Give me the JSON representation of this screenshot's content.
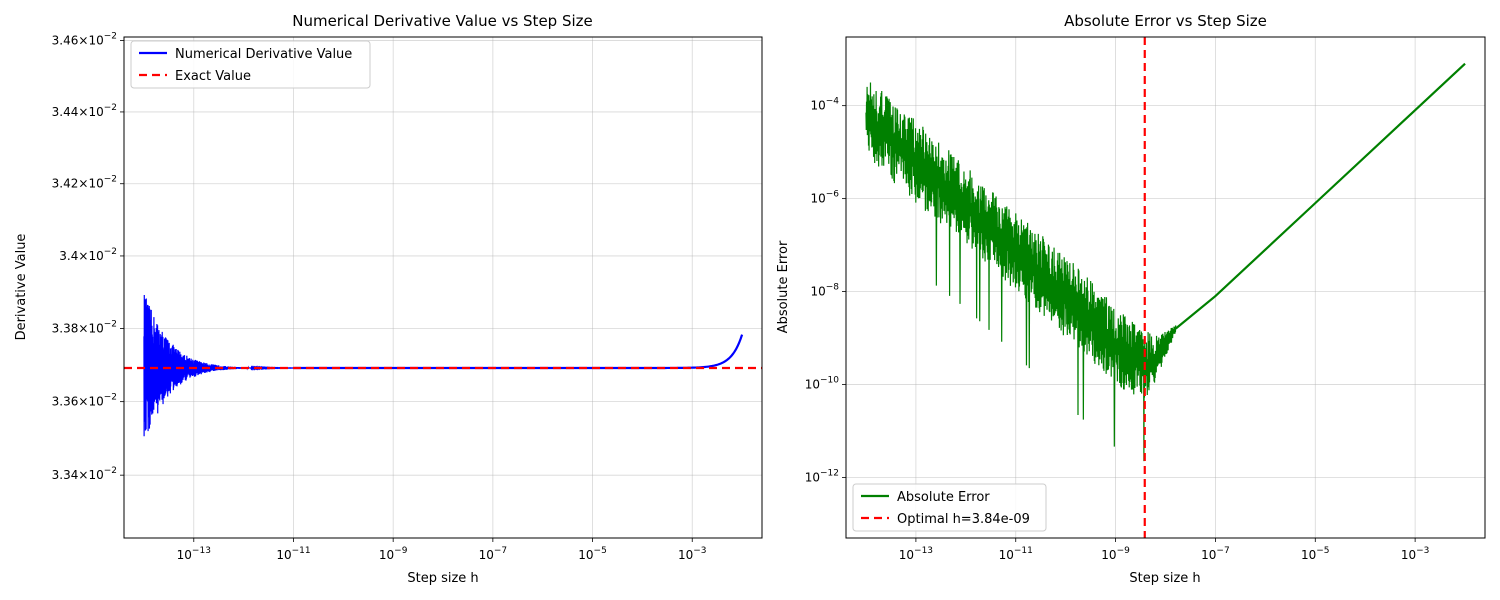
{
  "chart_data": [
    {
      "type": "line",
      "title": "Numerical Derivative Value vs Step Size",
      "xlabel": "Step size h",
      "ylabel": "Derivative Value",
      "xscale": "log",
      "yscale": "log",
      "xlim": [
        3.98e-15,
        0.0251
      ],
      "ylim": [
        0.03323,
        0.03461
      ],
      "x_ticks": [
        {
          "value": 1e-13,
          "base": "10",
          "exp": "−13"
        },
        {
          "value": 1e-11,
          "base": "10",
          "exp": "−11"
        },
        {
          "value": 1e-09,
          "base": "10",
          "exp": "−9"
        },
        {
          "value": 1e-07,
          "base": "10",
          "exp": "−7"
        },
        {
          "value": 1e-05,
          "base": "10",
          "exp": "−5"
        },
        {
          "value": 0.001,
          "base": "10",
          "exp": "−3"
        }
      ],
      "y_ticks": [
        {
          "value": 0.0334,
          "mant": "3.34",
          "sep": "×",
          "base": "10",
          "exp": "−2"
        },
        {
          "value": 0.0336,
          "mant": "3.36",
          "sep": "×",
          "base": "10",
          "exp": "−2"
        },
        {
          "value": 0.0338,
          "mant": "3.38",
          "sep": "×",
          "base": "10",
          "exp": "−2"
        },
        {
          "value": 0.034,
          "mant": "3.4",
          "sep": "×",
          "base": "10",
          "exp": "−2"
        },
        {
          "value": 0.0342,
          "mant": "3.42",
          "sep": "×",
          "base": "10",
          "exp": "−2"
        },
        {
          "value": 0.0344,
          "mant": "3.44",
          "sep": "×",
          "base": "10",
          "exp": "−2"
        },
        {
          "value": 0.0346,
          "mant": "3.46",
          "sep": "×",
          "base": "10",
          "exp": "−2"
        }
      ],
      "grid": true,
      "legend_position": "upper-left",
      "series": [
        {
          "name": "Numerical Derivative Value",
          "color": "#0000ff",
          "style": "solid",
          "noise_envelope": [
            [
              1e-14,
              0.00021
            ],
            [
              2e-14,
              0.00012
            ],
            [
              5e-14,
              5e-05
            ],
            [
              1e-13,
              2.5e-05
            ],
            [
              3e-13,
              8e-06
            ],
            [
              1e-12,
              2e-06
            ],
            [
              1e-11,
              2e-07
            ]
          ],
          "points": [
            [
              1e-14,
              0.033692
            ],
            [
              1e-11,
              0.033692
            ],
            [
              1e-07,
              0.033692
            ],
            [
              1e-05,
              0.033693
            ],
            [
              0.0001,
              0.033695
            ],
            [
              0.0003,
              0.033705
            ],
            [
              0.001,
              0.03374
            ],
            [
              0.002,
              0.03381
            ],
            [
              0.004,
              0.03395
            ],
            [
              0.006,
              0.03411
            ],
            [
              0.008,
              0.0343
            ],
            [
              0.01,
              0.03455
            ]
          ]
        },
        {
          "name": "Exact Value",
          "color": "#ff0000",
          "style": "dashed",
          "y": 0.033692
        }
      ]
    },
    {
      "type": "line",
      "title": "Absolute Error vs Step Size",
      "xlabel": "Step size h",
      "ylabel": "Absolute Error",
      "xscale": "log",
      "yscale": "log",
      "xlim": [
        3.98e-15,
        0.0251
      ],
      "ylim": [
        5e-14,
        0.003
      ],
      "x_ticks": [
        {
          "value": 1e-13,
          "base": "10",
          "exp": "−13"
        },
        {
          "value": 1e-11,
          "base": "10",
          "exp": "−11"
        },
        {
          "value": 1e-09,
          "base": "10",
          "exp": "−9"
        },
        {
          "value": 1e-07,
          "base": "10",
          "exp": "−7"
        },
        {
          "value": 1e-05,
          "base": "10",
          "exp": "−5"
        },
        {
          "value": 0.001,
          "base": "10",
          "exp": "−3"
        }
      ],
      "y_ticks": [
        {
          "value": 1e-12,
          "base": "10",
          "exp": "−12"
        },
        {
          "value": 1e-10,
          "base": "10",
          "exp": "−10"
        },
        {
          "value": 1e-08,
          "base": "10",
          "exp": "−8"
        },
        {
          "value": 1e-06,
          "base": "10",
          "exp": "−6"
        },
        {
          "value": 0.0001,
          "base": "10",
          "exp": "−4"
        }
      ],
      "grid": true,
      "legend_position": "lower-left",
      "series": [
        {
          "name": "Absolute Error",
          "color": "#008000",
          "style": "solid",
          "noise_band": [
            [
              1e-14,
              8e-06,
              0.0004
            ],
            [
              1e-13,
              8e-07,
              5e-05
            ],
            [
              1e-12,
              1e-07,
              5e-06
            ],
            [
              1e-11,
              1e-08,
              5e-07
            ],
            [
              1e-10,
              1e-09,
              6e-08
            ],
            [
              1e-09,
              1e-10,
              5e-09
            ],
            [
              3.84e-09,
              4e-11,
              1.5e-09
            ],
            [
              8e-09,
              2e-10,
              1.2e-09
            ],
            [
              1.6e-08,
              1.3e-09,
              1.9e-09
            ]
          ],
          "points": [
            [
              1.6e-08,
              1.6e-09
            ],
            [
              1e-07,
              8e-09
            ],
            [
              1e-05,
              8e-07
            ],
            [
              0.001,
              8e-05
            ],
            [
              0.01,
              0.0008
            ]
          ]
        },
        {
          "name": "Optimal h=3.84e-09",
          "color": "#ff0000",
          "style": "dashed",
          "x": 3.84e-09
        }
      ]
    }
  ]
}
